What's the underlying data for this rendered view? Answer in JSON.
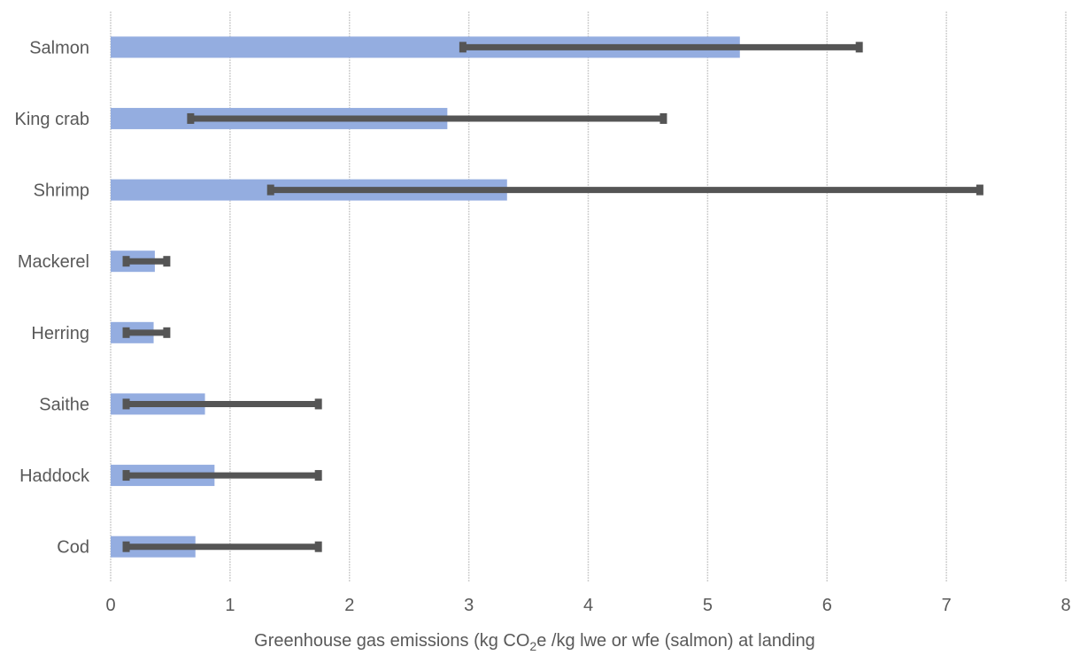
{
  "chart_data": {
    "type": "bar",
    "orientation": "horizontal",
    "categories": [
      "Salmon",
      "King crab",
      "Shrimp",
      "Mackerel",
      "Herring",
      "Saithe",
      "Haddock",
      "Cod"
    ],
    "values": [
      5.27,
      2.82,
      3.32,
      0.37,
      0.36,
      0.79,
      0.87,
      0.71
    ],
    "error_low": [
      2.95,
      0.67,
      1.34,
      0.13,
      0.13,
      0.13,
      0.13,
      0.13
    ],
    "error_high": [
      6.27,
      4.63,
      7.28,
      0.47,
      0.47,
      1.74,
      1.74,
      1.74
    ],
    "xlim": [
      0,
      8
    ],
    "xticks": [
      "0",
      "1",
      "2",
      "3",
      "4",
      "5",
      "6",
      "7",
      "8"
    ],
    "xlabel_parts": [
      "Greenhouse gas emissions (kg CO",
      "2",
      "e /kg lwe or wfe (salmon) at landing"
    ],
    "grid": "vertical",
    "legend": "none",
    "colors": {
      "bar": "#94ADE0",
      "error": "#555555",
      "grid": "#D0D0D0",
      "text": "#595959"
    }
  }
}
